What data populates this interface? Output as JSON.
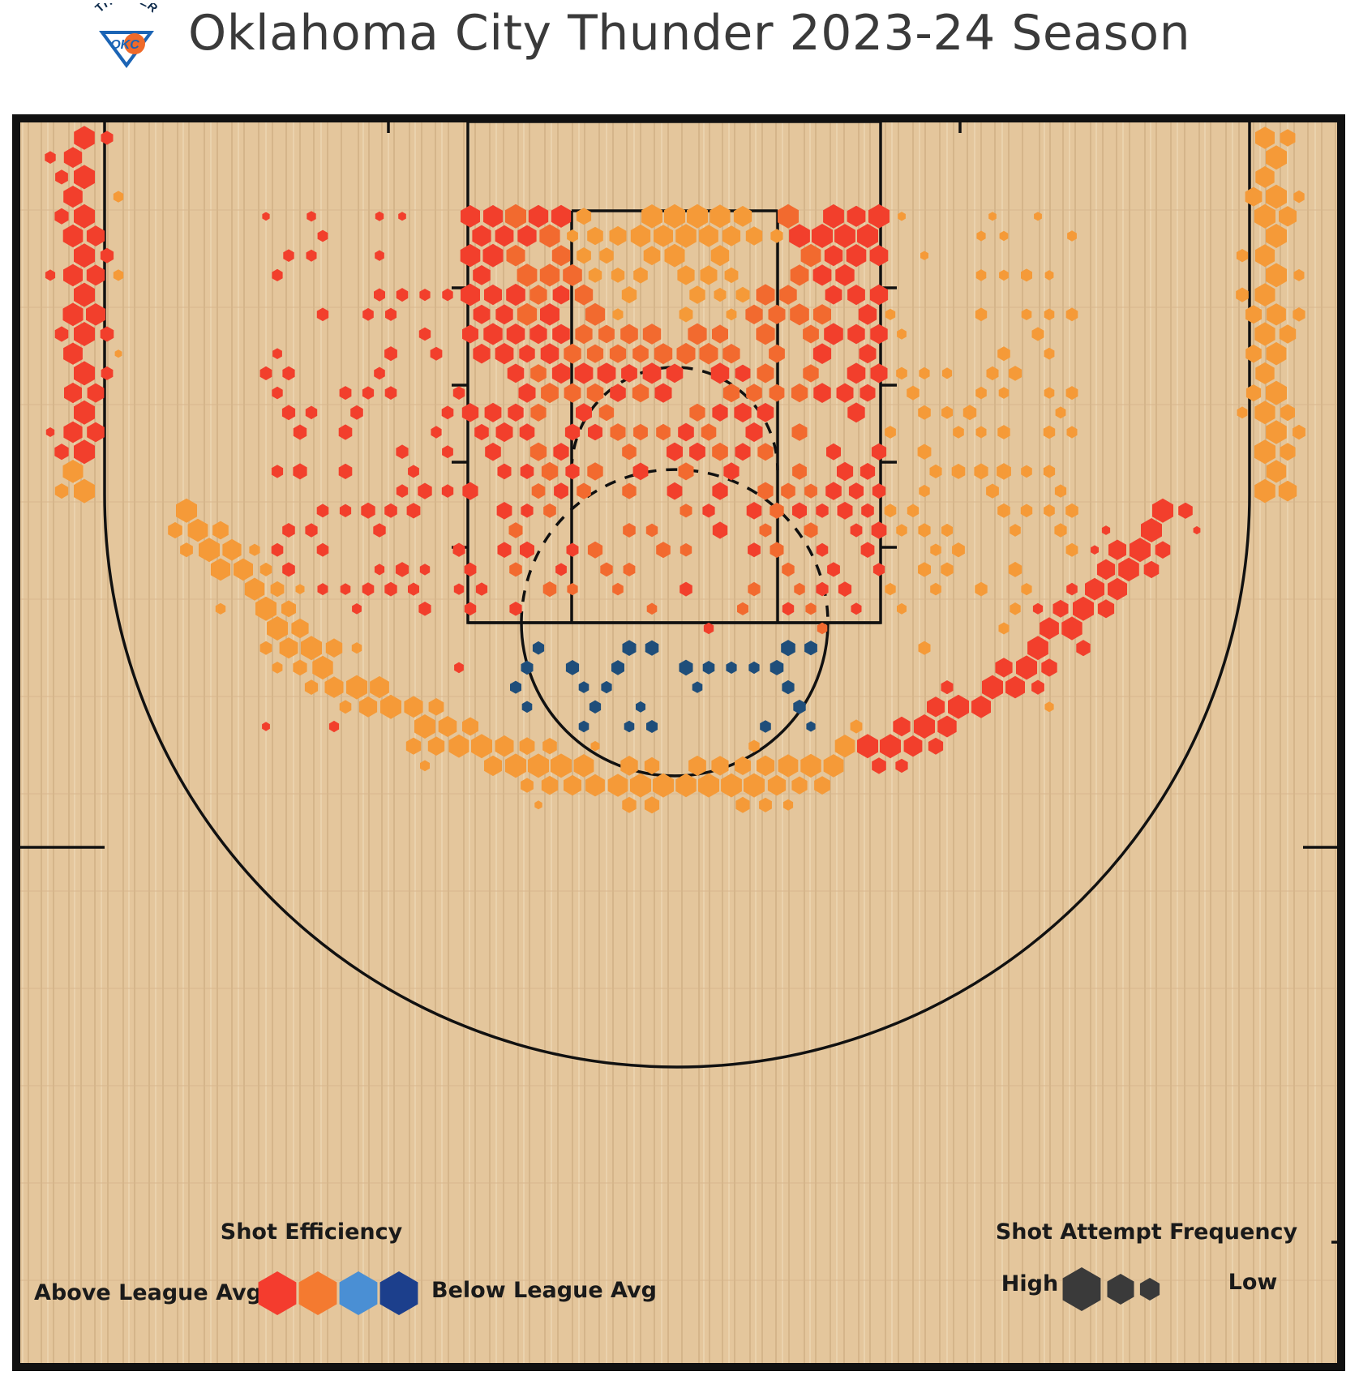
{
  "header": {
    "title": "Oklahoma City Thunder 2023-24 Season",
    "logo_text_top": "THUNDER",
    "logo_text_bottom": "OKC",
    "logo_colors": {
      "blue": "#1b64b5",
      "orange": "#ef6a2a",
      "navy": "#0d2a4b"
    }
  },
  "chart_data": {
    "type": "hexbin",
    "grid": false,
    "color_scale": [
      "#f43c2e",
      "#f47a30",
      "#4aa1e6",
      "#1f4e8a"
    ],
    "bands": {
      "red": "#f23f2c",
      "red_orange": "#f26a2f",
      "orange": "#f59a38",
      "light_blue": "#4da7ef",
      "navy": "#1f4e7a"
    },
    "legend": {
      "efficiency_title": "Shot Efficiency",
      "above_label": "Above League Avg",
      "below_label": "Below League Avg",
      "efficiency_colors": [
        "#f43c2e",
        "#f47a30",
        "#4a8fd4",
        "#1c3f8c"
      ],
      "frequency_title": "Shot Attempt Frequency",
      "high_label": "High",
      "low_label": "Low",
      "frequency_color": "#3a3a3a",
      "placement": "bottom"
    }
  }
}
